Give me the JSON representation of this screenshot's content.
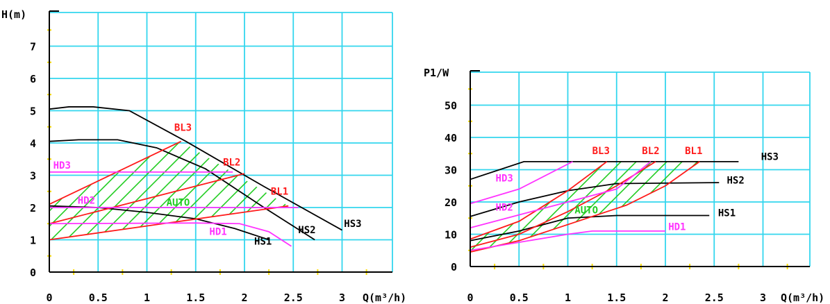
{
  "colors": {
    "grid": "#33d6ee",
    "axis": "#000000",
    "hs": "#000000",
    "bl": "#ff1a1a",
    "hd": "#ff33ff",
    "auto": "#22cc22",
    "minor": "#ffdd00"
  },
  "chart_data": [
    {
      "type": "line",
      "title": "",
      "xlabel": "Q(m³/h)",
      "ylabel": "H(m)",
      "xlim": [
        0,
        3.2
      ],
      "ylim": [
        0,
        8
      ],
      "x_ticks": [
        "0",
        "0.5",
        "1",
        "1.5",
        "2",
        "2.5",
        "3"
      ],
      "y_ticks": [
        "0",
        "1",
        "2",
        "3",
        "4",
        "5",
        "6",
        "7"
      ],
      "grid": true,
      "series": [
        {
          "name": "HS3",
          "group": "hs",
          "points": [
            [
              0,
              5.05
            ],
            [
              0.2,
              5.12
            ],
            [
              0.45,
              5.12
            ],
            [
              0.82,
              5.0
            ],
            [
              1.4,
              4.05
            ],
            [
              2.2,
              2.65
            ],
            [
              3.0,
              1.3
            ]
          ],
          "label": "HS3",
          "label_at": [
            3.02,
            1.4
          ]
        },
        {
          "name": "HS2",
          "group": "hs",
          "points": [
            [
              0,
              4.05
            ],
            [
              0.3,
              4.1
            ],
            [
              0.7,
              4.1
            ],
            [
              1.1,
              3.85
            ],
            [
              1.6,
              3.2
            ],
            [
              2.2,
              2.0
            ],
            [
              2.72,
              1.0
            ]
          ],
          "label": "HS2",
          "label_at": [
            2.55,
            1.2
          ]
        },
        {
          "name": "HS1",
          "group": "hs",
          "points": [
            [
              0,
              2.05
            ],
            [
              0.5,
              2.0
            ],
            [
              1.0,
              1.85
            ],
            [
              1.5,
              1.65
            ],
            [
              1.9,
              1.35
            ],
            [
              2.25,
              1.0
            ]
          ],
          "label": "HS1",
          "label_at": [
            2.1,
            0.85
          ]
        },
        {
          "name": "BL3",
          "group": "bl",
          "points": [
            [
              0,
              2.1
            ],
            [
              1.35,
              4.05
            ]
          ],
          "label": "BL3",
          "label_at": [
            1.28,
            4.38
          ]
        },
        {
          "name": "BL2",
          "group": "bl",
          "points": [
            [
              0,
              1.5
            ],
            [
              2.0,
              3.05
            ]
          ],
          "label": "BL2",
          "label_at": [
            1.78,
            3.3
          ]
        },
        {
          "name": "BL1",
          "group": "bl",
          "points": [
            [
              0,
              1.0
            ],
            [
              2.45,
              2.05
            ]
          ],
          "label": "BL1",
          "label_at": [
            2.27,
            2.4
          ]
        },
        {
          "name": "HD3",
          "group": "hd",
          "points": [
            [
              0,
              3.1
            ],
            [
              1.88,
              3.1
            ]
          ],
          "label": "HD3",
          "label_at": [
            0.04,
            3.2
          ]
        },
        {
          "name": "HD2",
          "group": "hd",
          "points": [
            [
              0,
              2.0
            ],
            [
              2.55,
              2.0
            ]
          ],
          "label": "HD2",
          "label_at": [
            0.29,
            2.12
          ]
        },
        {
          "name": "HD1",
          "group": "hd",
          "points": [
            [
              0,
              1.5
            ],
            [
              1.5,
              1.52
            ],
            [
              1.95,
              1.5
            ],
            [
              2.25,
              1.25
            ],
            [
              2.48,
              0.8
            ]
          ],
          "label": "HD1",
          "label_at": [
            1.64,
            1.15
          ]
        }
      ],
      "auto_label": "AUTO",
      "auto_label_at": [
        1.2,
        2.05
      ]
    },
    {
      "type": "line",
      "title": "",
      "xlabel": "Q(m³/h)",
      "ylabel": "P1/W",
      "xlim": [
        0,
        3.4
      ],
      "ylim": [
        0,
        60
      ],
      "x_ticks": [
        "0",
        "0.5",
        "1",
        "1.5",
        "2",
        "2.5",
        "3"
      ],
      "y_ticks": [
        "0",
        "10",
        "20",
        "30",
        "40",
        "50"
      ],
      "grid": true,
      "series": [
        {
          "name": "HS3",
          "group": "hs",
          "points": [
            [
              0,
              27
            ],
            [
              0.55,
              32.5
            ],
            [
              2.75,
              32.5
            ]
          ],
          "label": "HS3",
          "label_at": [
            2.98,
            33
          ]
        },
        {
          "name": "HS2",
          "group": "hs",
          "points": [
            [
              0,
              15.5
            ],
            [
              0.5,
              20
            ],
            [
              1.0,
              23.5
            ],
            [
              1.5,
              25.7
            ],
            [
              2.55,
              26
            ]
          ],
          "label": "HS2",
          "label_at": [
            2.63,
            25.7
          ]
        },
        {
          "name": "HS1",
          "group": "hs",
          "points": [
            [
              0,
              8
            ],
            [
              0.5,
              11
            ],
            [
              1.0,
              15
            ],
            [
              1.5,
              15.8
            ],
            [
              2.45,
              15.8
            ]
          ],
          "label": "HS1",
          "label_at": [
            2.54,
            15.6
          ]
        },
        {
          "name": "BL3",
          "group": "bl",
          "points": [
            [
              0,
              8.5
            ],
            [
              0.5,
              14
            ],
            [
              1.0,
              23.5
            ],
            [
              1.4,
              32.5
            ]
          ],
          "label": "BL3",
          "label_at": [
            1.25,
            34.8
          ]
        },
        {
          "name": "BL2",
          "group": "bl",
          "points": [
            [
              0,
              6
            ],
            [
              0.5,
              10
            ],
            [
              1.0,
              17
            ],
            [
              1.5,
              25
            ],
            [
              1.9,
              32.5
            ]
          ],
          "label": "BL2",
          "label_at": [
            1.76,
            34.8
          ]
        },
        {
          "name": "BL1",
          "group": "bl",
          "points": [
            [
              0,
              4.5
            ],
            [
              0.5,
              8
            ],
            [
              1.0,
              13
            ],
            [
              1.6,
              19
            ],
            [
              2.0,
              25
            ],
            [
              2.35,
              32.5
            ]
          ],
          "label": "BL1",
          "label_at": [
            2.2,
            34.8
          ]
        },
        {
          "name": "HD3",
          "group": "hd",
          "points": [
            [
              0,
              19.5
            ],
            [
              0.5,
              24
            ],
            [
              1.05,
              32.5
            ]
          ],
          "label": "HD3",
          "label_at": [
            0.26,
            26.3
          ]
        },
        {
          "name": "HD2",
          "group": "hd",
          "points": [
            [
              0,
              12
            ],
            [
              0.5,
              16
            ],
            [
              1.0,
              20
            ],
            [
              1.5,
              24
            ],
            [
              1.85,
              32.5
            ]
          ],
          "label": "HD2",
          "label_at": [
            0.26,
            17.3
          ]
        },
        {
          "name": "HD1",
          "group": "hd",
          "points": [
            [
              0,
              5
            ],
            [
              0.5,
              7.5
            ],
            [
              1.0,
              10
            ],
            [
              1.25,
              11
            ],
            [
              2.0,
              11
            ]
          ],
          "label": "HD1",
          "label_at": [
            2.03,
            11.3
          ]
        }
      ],
      "auto_label": "AUTO",
      "auto_label_at": [
        1.07,
        16.5
      ]
    }
  ]
}
